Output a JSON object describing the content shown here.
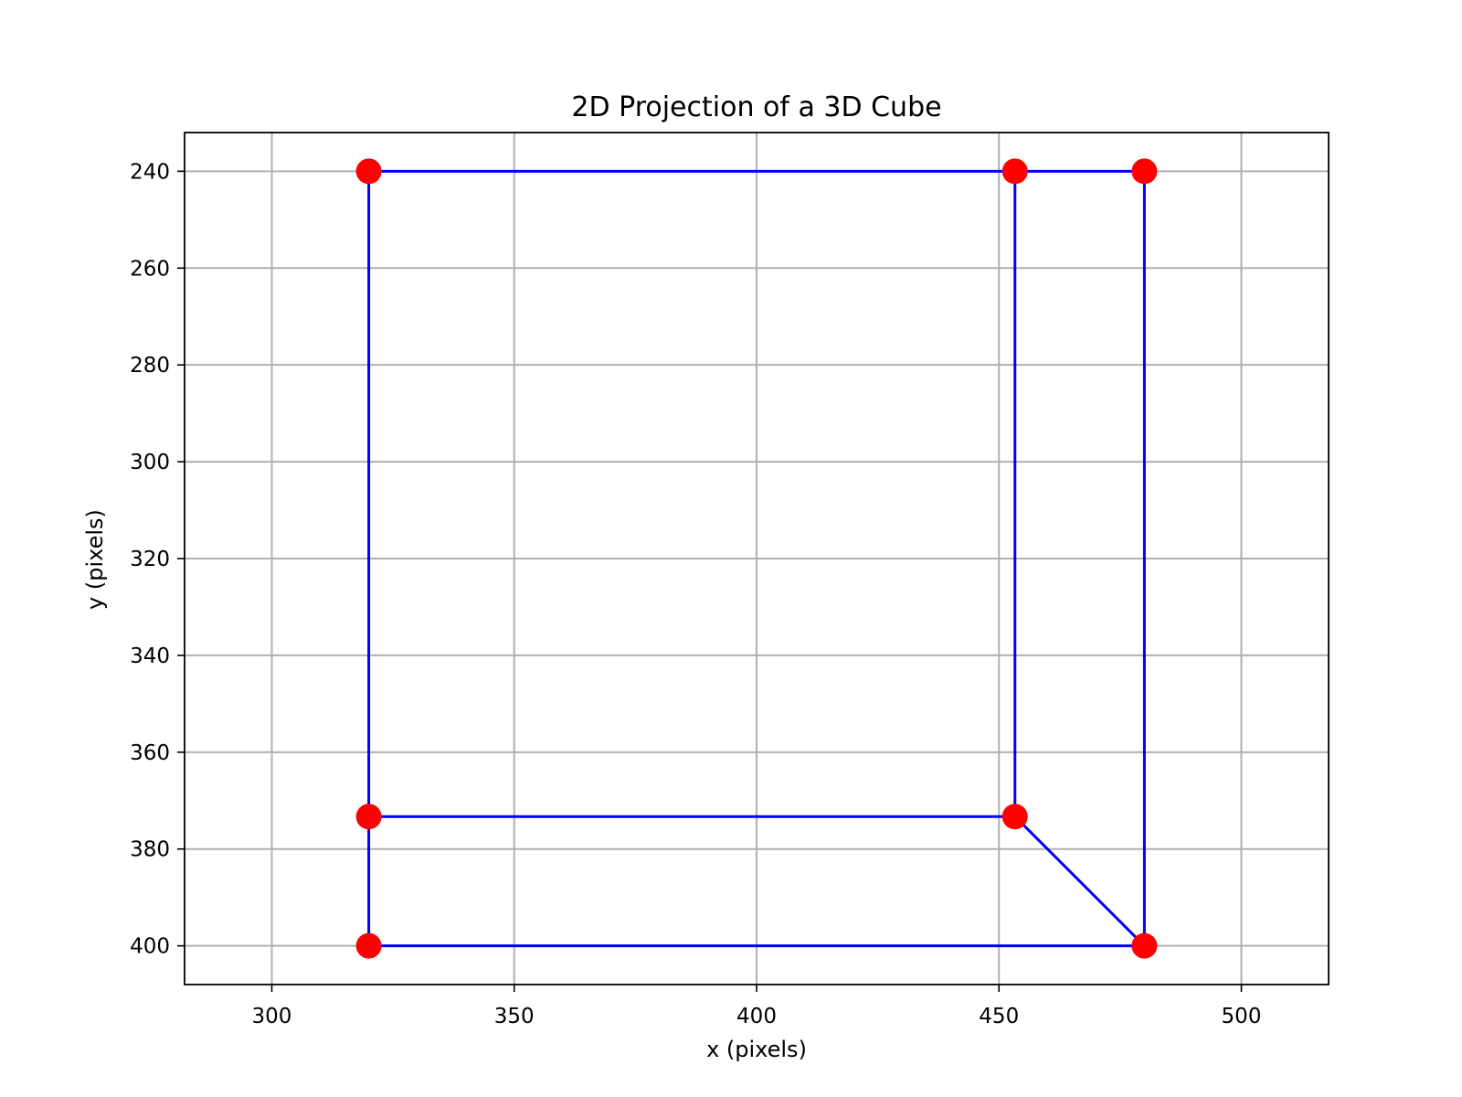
{
  "chart_data": {
    "type": "scatter",
    "title": "2D Projection of a 3D Cube",
    "xlabel": "x (pixels)",
    "ylabel": "y (pixels)",
    "xlim": [
      282,
      518
    ],
    "ylim": [
      408,
      232
    ],
    "y_axis_inverted": true,
    "grid": true,
    "x_ticks": [
      300,
      350,
      400,
      450,
      500
    ],
    "y_ticks": [
      240,
      260,
      280,
      300,
      320,
      340,
      360,
      380,
      400
    ],
    "points": [
      {
        "x": 320,
        "y": 240
      },
      {
        "x": 453.3,
        "y": 240
      },
      {
        "x": 480,
        "y": 240
      },
      {
        "x": 320,
        "y": 373.3
      },
      {
        "x": 453.3,
        "y": 373.3
      },
      {
        "x": 320,
        "y": 400
      },
      {
        "x": 480,
        "y": 400
      }
    ],
    "edges": [
      {
        "from": {
          "x": 320,
          "y": 240
        },
        "to": {
          "x": 453.3,
          "y": 240
        }
      },
      {
        "from": {
          "x": 453.3,
          "y": 240
        },
        "to": {
          "x": 480,
          "y": 240
        }
      },
      {
        "from": {
          "x": 320,
          "y": 240
        },
        "to": {
          "x": 320,
          "y": 373.3
        }
      },
      {
        "from": {
          "x": 320,
          "y": 373.3
        },
        "to": {
          "x": 320,
          "y": 400
        }
      },
      {
        "from": {
          "x": 453.3,
          "y": 240
        },
        "to": {
          "x": 453.3,
          "y": 373.3
        }
      },
      {
        "from": {
          "x": 480,
          "y": 240
        },
        "to": {
          "x": 480,
          "y": 400
        }
      },
      {
        "from": {
          "x": 320,
          "y": 373.3
        },
        "to": {
          "x": 453.3,
          "y": 373.3
        }
      },
      {
        "from": {
          "x": 320,
          "y": 400
        },
        "to": {
          "x": 480,
          "y": 400
        }
      },
      {
        "from": {
          "x": 453.3,
          "y": 373.3
        },
        "to": {
          "x": 480,
          "y": 400
        }
      }
    ],
    "colors": {
      "points": "#ff0000",
      "edges": "#0000ff",
      "grid": "#b0b0b0",
      "axes": "#000000"
    }
  }
}
